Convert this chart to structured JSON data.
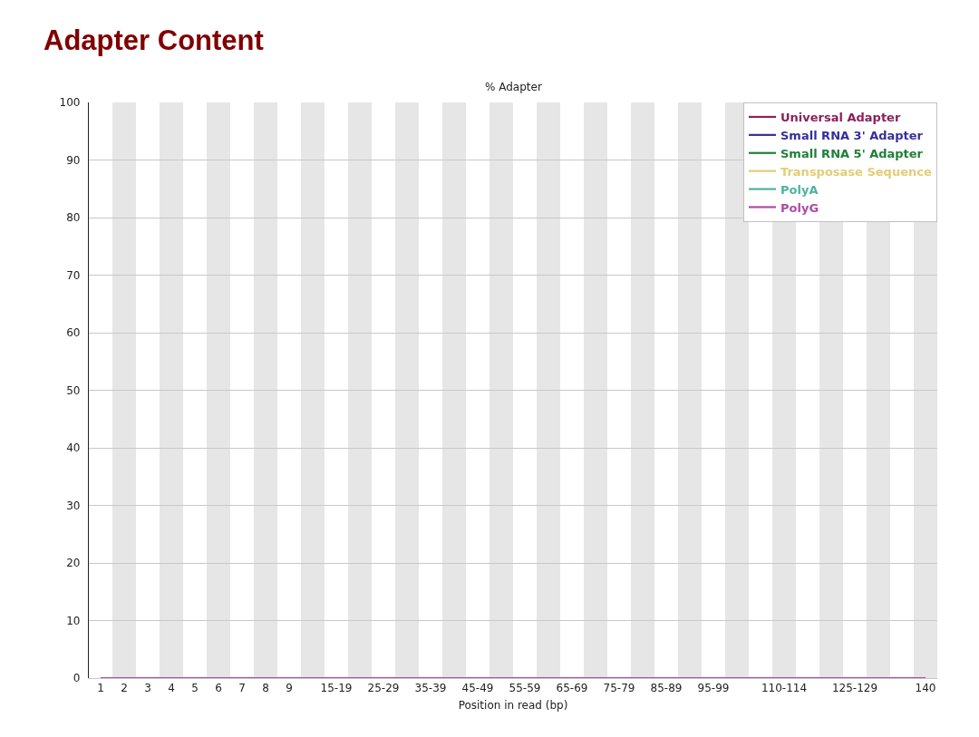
{
  "chart_data": {
    "type": "line",
    "title": "Adapter Content",
    "subtitle": "% Adapter",
    "xlabel": "Position in read (bp)",
    "categories": [
      "1",
      "2",
      "3",
      "4",
      "5",
      "6",
      "7",
      "8",
      "9",
      null,
      "15-19",
      null,
      "25-29",
      null,
      "35-39",
      null,
      "45-49",
      null,
      "55-59",
      null,
      "65-69",
      null,
      "75-79",
      null,
      "85-89",
      null,
      "95-99",
      null,
      null,
      "110-114",
      null,
      null,
      "125-129",
      null,
      null,
      "140"
    ],
    "series": [
      {
        "name": "Universal Adapter",
        "color": "#8c1f5a",
        "values": [
          null,
          null,
          null,
          null,
          null,
          null,
          null,
          null,
          null,
          null,
          null,
          null,
          null,
          null,
          null,
          null,
          null,
          null,
          null,
          null,
          null,
          null,
          null,
          null,
          null,
          null,
          null,
          null,
          null,
          null,
          null,
          null,
          null,
          null,
          null,
          null
        ]
      },
      {
        "name": "Small RNA 3' Adapter",
        "color": "#34309c",
        "values": [
          null,
          null,
          null,
          null,
          null,
          null,
          null,
          null,
          null,
          null,
          null,
          null,
          null,
          null,
          null,
          null,
          null,
          null,
          null,
          null,
          null,
          null,
          null,
          null,
          null,
          null,
          null,
          null,
          null,
          null,
          null,
          null,
          null,
          null,
          null,
          null
        ]
      },
      {
        "name": "Small RNA 5' Adapter",
        "color": "#1f7f36",
        "values": [
          null,
          null,
          null,
          null,
          null,
          null,
          null,
          null,
          null,
          null,
          null,
          null,
          null,
          null,
          null,
          null,
          null,
          null,
          null,
          null,
          null,
          null,
          null,
          null,
          null,
          null,
          null,
          null,
          null,
          null,
          null,
          null,
          null,
          null,
          null,
          null
        ]
      },
      {
        "name": "Transposase Sequence",
        "color": "#e3cc74",
        "values": [
          null,
          null,
          null,
          null,
          null,
          null,
          null,
          null,
          null,
          null,
          null,
          null,
          null,
          null,
          null,
          null,
          null,
          null,
          null,
          null,
          null,
          null,
          null,
          null,
          null,
          null,
          null,
          null,
          null,
          null,
          null,
          null,
          null,
          null,
          null,
          null
        ]
      },
      {
        "name": "PolyA",
        "color": "#4db3a0",
        "values": [
          null,
          null,
          null,
          null,
          null,
          null,
          null,
          null,
          null,
          null,
          null,
          null,
          null,
          null,
          null,
          null,
          null,
          null,
          null,
          null,
          null,
          null,
          null,
          null,
          null,
          null,
          null,
          null,
          null,
          null,
          null,
          null,
          null,
          null,
          null,
          null
        ]
      },
      {
        "name": "PolyG",
        "color": "#b04aa8",
        "values": [
          0,
          0,
          0,
          0,
          0,
          0,
          0,
          0,
          0,
          0,
          0,
          0,
          0,
          0,
          0,
          0,
          0,
          0,
          0,
          0,
          0,
          0,
          0,
          0,
          0,
          0,
          0,
          0,
          0,
          0,
          0,
          0,
          0,
          0,
          0,
          0
        ]
      }
    ],
    "ylim": [
      0,
      100
    ],
    "yticks": [
      0,
      10,
      20,
      30,
      40,
      50,
      60,
      70,
      80,
      90,
      100
    ],
    "grid": "y",
    "legend": "top right"
  }
}
